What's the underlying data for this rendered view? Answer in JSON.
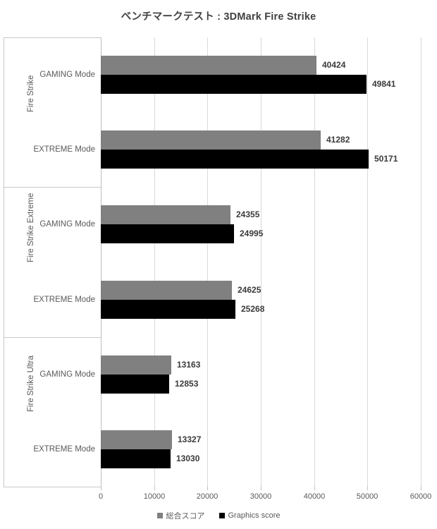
{
  "title": "ベンチマークテスト : 3DMark Fire Strike",
  "colors": {
    "series_overall": "#808080",
    "series_graphics": "#000000",
    "gridline": "#d9d9d9",
    "axis_line": "#bfbfbf",
    "label_border": "#c9c9c9",
    "tick_text": "#595959",
    "value_text": "#3a3a3a",
    "title_text": "#404040"
  },
  "chart_data": {
    "type": "bar",
    "orientation": "horizontal",
    "title": "ベンチマークテスト : 3DMark Fire Strike",
    "xlabel": "",
    "ylabel": "",
    "xlim": [
      0,
      60000
    ],
    "xticks": [
      "0",
      "10000",
      "20000",
      "30000",
      "40000",
      "50000",
      "60000"
    ],
    "xtick_values": [
      0,
      10000,
      20000,
      30000,
      40000,
      50000,
      60000
    ],
    "grid": true,
    "legend_position": "bottom",
    "series": [
      {
        "name": "総合スコア",
        "color": "#808080"
      },
      {
        "name": "Graphics score",
        "color": "#000000"
      }
    ],
    "groups": [
      {
        "label": "Fire Strike",
        "categories": [
          {
            "label": "GAMING Mode",
            "values": [
              40424,
              49841
            ]
          },
          {
            "label": "EXTREME Mode",
            "values": [
              41282,
              50171
            ]
          }
        ]
      },
      {
        "label": "Fire Strike Extreme",
        "categories": [
          {
            "label": "GAMING Mode",
            "values": [
              24355,
              24995
            ]
          },
          {
            "label": "EXTREME Mode",
            "values": [
              24625,
              25268
            ]
          }
        ]
      },
      {
        "label": "Fire Strike Ultra",
        "categories": [
          {
            "label": "GAMING Mode",
            "values": [
              13163,
              12853
            ]
          },
          {
            "label": "EXTREME Mode",
            "values": [
              13327,
              13030
            ]
          }
        ]
      }
    ]
  }
}
